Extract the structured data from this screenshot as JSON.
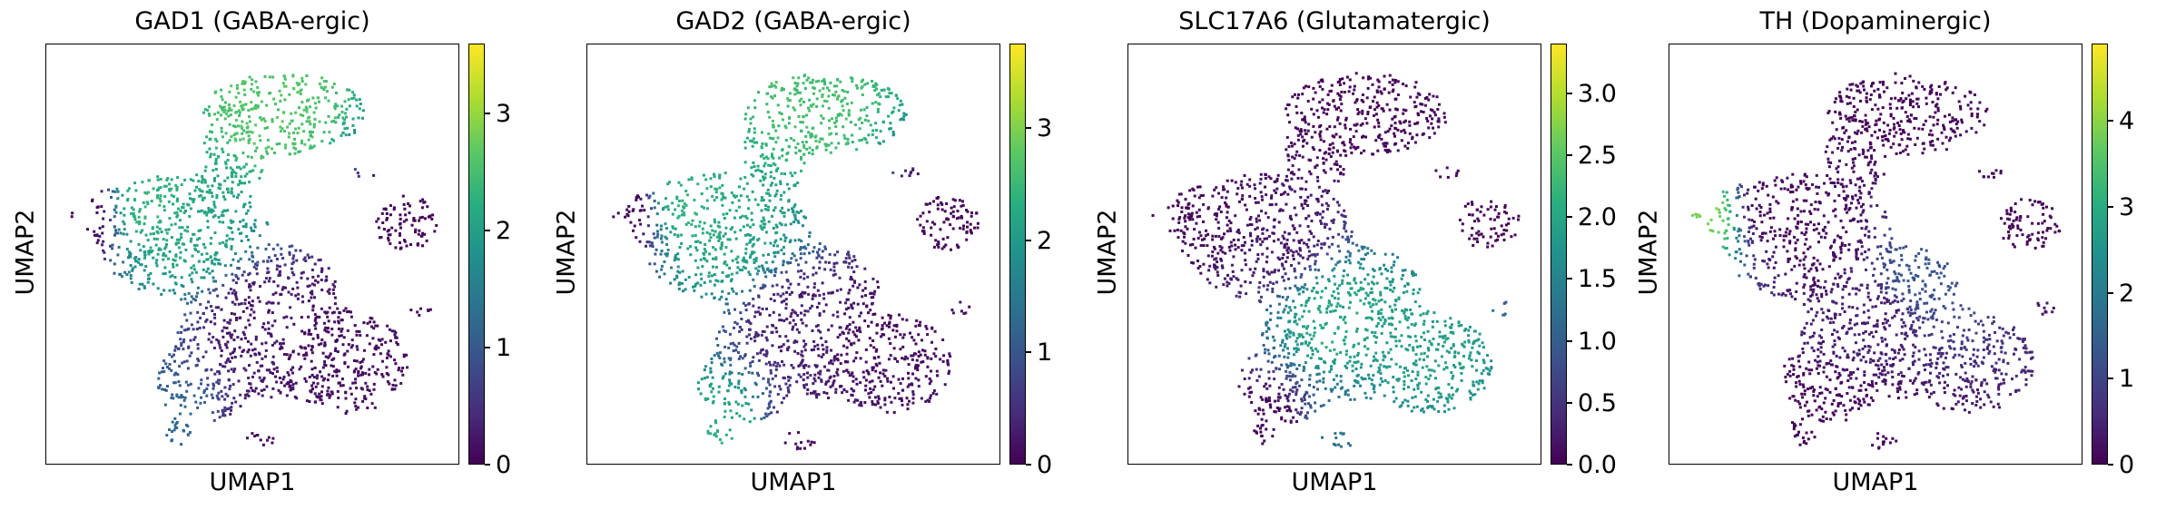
{
  "figure": {
    "panels": [
      {
        "title": "GAD1 (GABA-ergic)",
        "xlabel": "UMAP1",
        "ylabel": "UMAP2",
        "colorbar": {
          "min": 0,
          "max": 3.6,
          "ticks": [
            "0",
            "1",
            "2",
            "3"
          ],
          "tick_values": [
            0,
            1,
            2,
            3
          ]
        }
      },
      {
        "title": "GAD2 (GABA-ergic)",
        "xlabel": "UMAP1",
        "ylabel": "UMAP2",
        "colorbar": {
          "min": 0,
          "max": 3.75,
          "ticks": [
            "0",
            "1",
            "2",
            "3"
          ],
          "tick_values": [
            0,
            1,
            2,
            3
          ]
        }
      },
      {
        "title": "SLC17A6 (Glutamatergic)",
        "xlabel": "UMAP1",
        "ylabel": "UMAP2",
        "colorbar": {
          "min": 0,
          "max": 3.4,
          "ticks": [
            "0.0",
            "0.5",
            "1.0",
            "1.5",
            "2.0",
            "2.5",
            "3.0"
          ],
          "tick_values": [
            0,
            0.5,
            1,
            1.5,
            2,
            2.5,
            3
          ]
        }
      },
      {
        "title": "TH (Dopaminergic)",
        "xlabel": "UMAP1",
        "ylabel": "UMAP2",
        "colorbar": {
          "min": 0,
          "max": 4.9,
          "ticks": [
            "0",
            "1",
            "2",
            "3",
            "4"
          ],
          "tick_values": [
            0,
            1,
            2,
            3,
            4
          ]
        }
      }
    ]
  },
  "chart_data": [
    {
      "type": "scatter",
      "title": "GAD1 (GABA-ergic)",
      "xlabel": "UMAP1",
      "ylabel": "UMAP2",
      "colormap": "viridis",
      "color_range": [
        0,
        3.6
      ],
      "regions": [
        {
          "x": 0.55,
          "y": 0.85,
          "value": 2.6
        },
        {
          "x": 0.35,
          "y": 0.55,
          "value": 2.1
        },
        {
          "x": 0.25,
          "y": 0.62,
          "value": 2.3
        },
        {
          "x": 0.5,
          "y": 0.35,
          "value": 0.2
        },
        {
          "x": 0.7,
          "y": 0.3,
          "value": 0.1
        },
        {
          "x": 0.9,
          "y": 0.6,
          "value": 0.0
        },
        {
          "x": 0.33,
          "y": 0.08,
          "value": 1.2
        },
        {
          "x": 0.5,
          "y": 0.06,
          "value": 0.1
        },
        {
          "x": 0.07,
          "y": 0.6,
          "value": 0.0
        }
      ]
    },
    {
      "type": "scatter",
      "title": "GAD2 (GABA-ergic)",
      "xlabel": "UMAP1",
      "ylabel": "UMAP2",
      "colormap": "viridis",
      "color_range": [
        0,
        3.75
      ],
      "regions": [
        {
          "x": 0.55,
          "y": 0.85,
          "value": 2.6
        },
        {
          "x": 0.35,
          "y": 0.55,
          "value": 2.2
        },
        {
          "x": 0.25,
          "y": 0.62,
          "value": 2.4
        },
        {
          "x": 0.5,
          "y": 0.35,
          "value": 0.3
        },
        {
          "x": 0.7,
          "y": 0.3,
          "value": 0.1
        },
        {
          "x": 0.9,
          "y": 0.6,
          "value": 0.0
        },
        {
          "x": 0.33,
          "y": 0.08,
          "value": 2.3
        },
        {
          "x": 0.5,
          "y": 0.06,
          "value": 0.1
        },
        {
          "x": 0.07,
          "y": 0.6,
          "value": 0.0
        }
      ]
    },
    {
      "type": "scatter",
      "title": "SLC17A6 (Glutamatergic)",
      "xlabel": "UMAP1",
      "ylabel": "UMAP2",
      "colormap": "viridis",
      "color_range": [
        0,
        3.4
      ],
      "regions": [
        {
          "x": 0.55,
          "y": 0.85,
          "value": 0.0
        },
        {
          "x": 0.35,
          "y": 0.55,
          "value": 0.2
        },
        {
          "x": 0.25,
          "y": 0.62,
          "value": 0.1
        },
        {
          "x": 0.5,
          "y": 0.35,
          "value": 2.0
        },
        {
          "x": 0.7,
          "y": 0.3,
          "value": 1.9
        },
        {
          "x": 0.9,
          "y": 0.6,
          "value": 0.0
        },
        {
          "x": 0.33,
          "y": 0.08,
          "value": 0.0
        },
        {
          "x": 0.5,
          "y": 0.06,
          "value": 1.3
        },
        {
          "x": 0.07,
          "y": 0.6,
          "value": 0.0
        }
      ]
    },
    {
      "type": "scatter",
      "title": "TH (Dopaminergic)",
      "xlabel": "UMAP1",
      "ylabel": "UMAP2",
      "colormap": "viridis",
      "color_range": [
        0,
        4.9
      ],
      "regions": [
        {
          "x": 0.55,
          "y": 0.85,
          "value": 0.0
        },
        {
          "x": 0.35,
          "y": 0.55,
          "value": 0.1
        },
        {
          "x": 0.25,
          "y": 0.62,
          "value": 0.0
        },
        {
          "x": 0.5,
          "y": 0.35,
          "value": 0.4
        },
        {
          "x": 0.6,
          "y": 0.45,
          "value": 1.3
        },
        {
          "x": 0.9,
          "y": 0.6,
          "value": 0.0
        },
        {
          "x": 0.33,
          "y": 0.08,
          "value": 0.0
        },
        {
          "x": 0.5,
          "y": 0.06,
          "value": 0.0
        },
        {
          "x": 0.07,
          "y": 0.6,
          "value": 3.9
        }
      ]
    }
  ]
}
